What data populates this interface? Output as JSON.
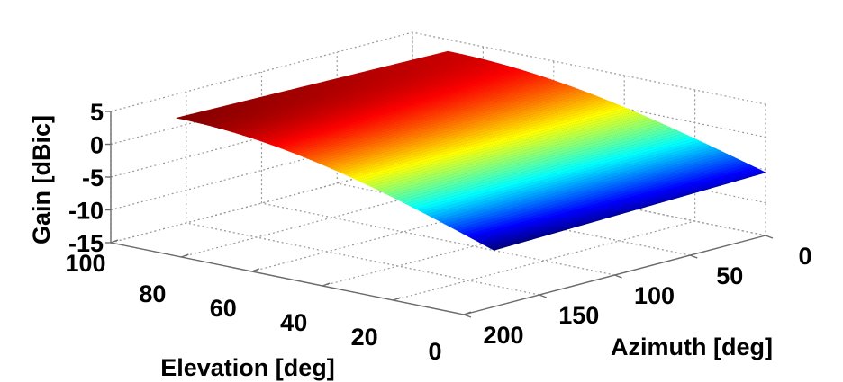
{
  "chart_data": {
    "type": "surface3d",
    "title": "",
    "xlabel": "Azimuth [deg]",
    "ylabel": "Elevation [deg]",
    "zlabel": "Gain [dBic]",
    "x_ticks": [
      "0",
      "50",
      "100",
      "150",
      "200"
    ],
    "x_tick_values": [
      0,
      50,
      100,
      150,
      200
    ],
    "y_ticks": [
      "0",
      "20",
      "40",
      "60",
      "80",
      "100"
    ],
    "y_tick_values": [
      0,
      20,
      40,
      60,
      80,
      100
    ],
    "z_ticks": [
      "5",
      "0",
      "-5",
      "-10",
      "-15"
    ],
    "z_tick_values": [
      5,
      0,
      -5,
      -10,
      -15
    ],
    "xlim": [
      0,
      200
    ],
    "ylim": [
      0,
      100
    ],
    "zlim": [
      -15,
      5
    ],
    "grid": true,
    "colormap": "jet",
    "surface": {
      "azimuth_range": [
        0,
        180
      ],
      "elevation_range": [
        0,
        90
      ],
      "corner_gains": {
        "elev0_az0": -5.4,
        "elev0_az180": -6.4,
        "elev90_az0": 3.2,
        "elev90_az180": 3.9
      },
      "min_gain": -6.4,
      "max_gain": 4.0
    }
  }
}
